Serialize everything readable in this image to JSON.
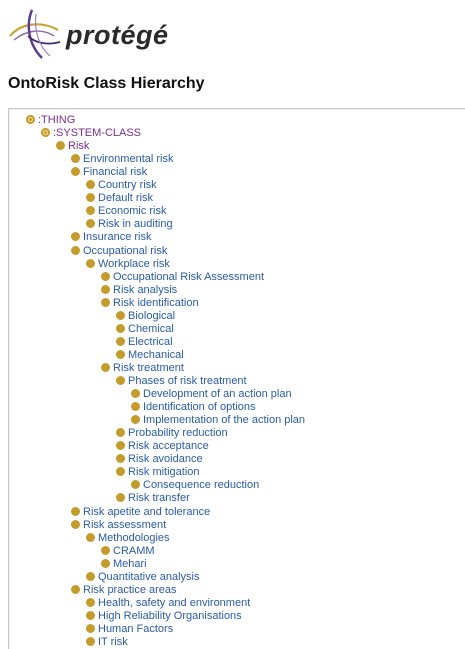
{
  "logo": {
    "text": "protégé",
    "icon": "protege-swoosh-logo"
  },
  "page": {
    "title": "OntoRisk Class Hierarchy"
  },
  "colors": {
    "link": "#2a5ca6",
    "meta_link": "#7a2e8e",
    "bullet": "#c49c2c"
  },
  "tree": [
    {
      "label": ":THING",
      "depth": 0,
      "meta": true
    },
    {
      "label": ":SYSTEM-CLASS",
      "depth": 1,
      "meta": true
    },
    {
      "label": "Risk",
      "depth": 2,
      "meta": true
    },
    {
      "label": "Environmental risk",
      "depth": 3
    },
    {
      "label": "Financial risk",
      "depth": 3
    },
    {
      "label": "Country risk",
      "depth": 4
    },
    {
      "label": "Default risk",
      "depth": 4
    },
    {
      "label": "Economic risk",
      "depth": 4
    },
    {
      "label": "Risk in auditing",
      "depth": 4
    },
    {
      "label": "Insurance risk",
      "depth": 3
    },
    {
      "label": "Occupational risk",
      "depth": 3
    },
    {
      "label": "Workplace risk",
      "depth": 4
    },
    {
      "label": "Occupational Risk Assessment",
      "depth": 5
    },
    {
      "label": "Risk analysis",
      "depth": 5
    },
    {
      "label": "Risk identification",
      "depth": 5
    },
    {
      "label": "Biological",
      "depth": 6
    },
    {
      "label": "Chemical",
      "depth": 6
    },
    {
      "label": "Electrical",
      "depth": 6
    },
    {
      "label": "Mechanical",
      "depth": 6
    },
    {
      "label": "Risk treatment",
      "depth": 5
    },
    {
      "label": "Phases of risk treatment",
      "depth": 6
    },
    {
      "label": "Development of an action plan",
      "depth": 7
    },
    {
      "label": "Identification of options",
      "depth": 7
    },
    {
      "label": "Implementation of the action plan",
      "depth": 7
    },
    {
      "label": "Probability reduction",
      "depth": 6
    },
    {
      "label": "Risk acceptance",
      "depth": 6
    },
    {
      "label": "Risk avoidance",
      "depth": 6
    },
    {
      "label": "Risk mitigation",
      "depth": 6
    },
    {
      "label": "Consequence reduction",
      "depth": 7
    },
    {
      "label": "Risk transfer",
      "depth": 6
    },
    {
      "label": "Risk apetite and tolerance",
      "depth": 3
    },
    {
      "label": "Risk assessment",
      "depth": 3
    },
    {
      "label": "Methodologies",
      "depth": 4
    },
    {
      "label": "CRAMM",
      "depth": 5
    },
    {
      "label": "Mehari",
      "depth": 5
    },
    {
      "label": "Quantitative analysis",
      "depth": 4
    },
    {
      "label": "Risk practice areas",
      "depth": 3
    },
    {
      "label": "Health, safety and environment",
      "depth": 4
    },
    {
      "label": "High Reliability Organisations",
      "depth": 4
    },
    {
      "label": "Human Factors",
      "depth": 4
    },
    {
      "label": "IT risk",
      "depth": 4
    }
  ]
}
